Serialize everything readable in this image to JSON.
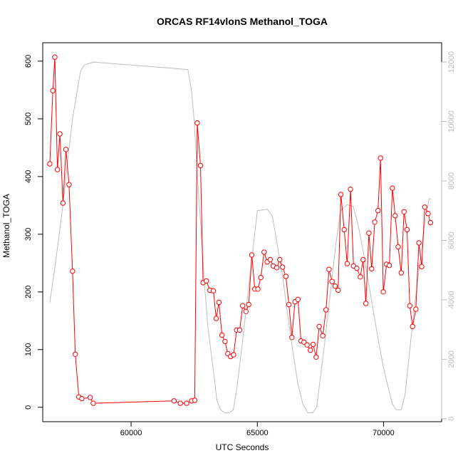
{
  "chart_data": {
    "type": "line",
    "title": "ORCAS RF14vlonS Methanol_TOGA",
    "xlabel": "UTC Seconds",
    "ylabel": "Methanol_TOGA",
    "xlim": [
      56500,
      72300
    ],
    "ylim": [
      -25,
      632
    ],
    "ylim_right": [
      -100,
      12650
    ],
    "x_ticks": [
      60000,
      65000,
      70000
    ],
    "y_ticks": [
      0,
      100,
      200,
      300,
      400,
      500,
      600
    ],
    "y_ticks_right": [
      0,
      2000,
      4000,
      6000,
      8000,
      10000,
      12000
    ],
    "grid": false,
    "colors": {
      "series_methanol": "#ff0000",
      "series_altitude": "#bebebe",
      "axis": "#000000"
    },
    "series": [
      {
        "axis": "left",
        "style": "line+points",
        "points": [
          [
            56780,
            422
          ],
          [
            56900,
            549
          ],
          [
            56980,
            607
          ],
          [
            57080,
            412
          ],
          [
            57180,
            474
          ],
          [
            57300,
            354
          ],
          [
            57420,
            447
          ],
          [
            57540,
            386
          ],
          [
            57680,
            236
          ],
          [
            57790,
            92
          ],
          [
            57930,
            18
          ],
          [
            58050,
            15
          ],
          [
            58380,
            17
          ],
          [
            58500,
            7
          ],
          [
            61700,
            11
          ],
          [
            61950,
            7
          ],
          [
            62200,
            7
          ],
          [
            62400,
            11
          ],
          [
            62520,
            12
          ],
          [
            62620,
            493
          ],
          [
            62750,
            419
          ],
          [
            62850,
            216
          ],
          [
            62980,
            219
          ],
          [
            63120,
            203
          ],
          [
            63260,
            202
          ],
          [
            63370,
            154
          ],
          [
            63480,
            182
          ],
          [
            63600,
            125
          ],
          [
            63720,
            114
          ],
          [
            63830,
            93
          ],
          [
            63940,
            88
          ],
          [
            64060,
            91
          ],
          [
            64180,
            134
          ],
          [
            64300,
            134
          ],
          [
            64420,
            176
          ],
          [
            64550,
            166
          ],
          [
            64660,
            178
          ],
          [
            64780,
            264
          ],
          [
            64900,
            205
          ],
          [
            65020,
            205
          ],
          [
            65140,
            225
          ],
          [
            65270,
            269
          ],
          [
            65390,
            252
          ],
          [
            65510,
            256
          ],
          [
            65630,
            245
          ],
          [
            65770,
            242
          ],
          [
            65890,
            256
          ],
          [
            66000,
            243
          ],
          [
            66130,
            227
          ],
          [
            66250,
            178
          ],
          [
            66370,
            121
          ],
          [
            66490,
            183
          ],
          [
            66610,
            187
          ],
          [
            66730,
            115
          ],
          [
            66850,
            113
          ],
          [
            66970,
            108
          ],
          [
            67100,
            99
          ],
          [
            67210,
            109
          ],
          [
            67330,
            87
          ],
          [
            67450,
            140
          ],
          [
            67590,
            124
          ],
          [
            67720,
            169
          ],
          [
            67840,
            239
          ],
          [
            67960,
            218
          ],
          [
            68080,
            210
          ],
          [
            68200,
            203
          ],
          [
            68310,
            369
          ],
          [
            68440,
            308
          ],
          [
            68560,
            249
          ],
          [
            68690,
            378
          ],
          [
            68810,
            245
          ],
          [
            68940,
            241
          ],
          [
            69080,
            226
          ],
          [
            69190,
            256
          ],
          [
            69300,
            180
          ],
          [
            69420,
            302
          ],
          [
            69530,
            240
          ],
          [
            69650,
            321
          ],
          [
            69780,
            341
          ],
          [
            69880,
            432
          ],
          [
            69990,
            200
          ],
          [
            70120,
            248
          ],
          [
            70230,
            246
          ],
          [
            70350,
            380
          ],
          [
            70460,
            332
          ],
          [
            70580,
            278
          ],
          [
            70700,
            233
          ],
          [
            70810,
            339
          ],
          [
            70930,
            308
          ],
          [
            71040,
            176
          ],
          [
            71150,
            140
          ],
          [
            71280,
            170
          ],
          [
            71400,
            285
          ],
          [
            71510,
            244
          ],
          [
            71630,
            347
          ],
          [
            71760,
            336
          ],
          [
            71860,
            320
          ]
        ]
      },
      {
        "axis": "right",
        "style": "line",
        "points": [
          [
            56780,
            3900
          ],
          [
            57000,
            5200
          ],
          [
            57300,
            7200
          ],
          [
            57500,
            8800
          ],
          [
            57700,
            10200
          ],
          [
            57900,
            11200
          ],
          [
            58000,
            11700
          ],
          [
            58150,
            11900
          ],
          [
            58500,
            12000
          ],
          [
            62250,
            11750
          ],
          [
            62400,
            11000
          ],
          [
            62500,
            10000
          ],
          [
            62600,
            8500
          ],
          [
            62750,
            6600
          ],
          [
            62900,
            4600
          ],
          [
            63050,
            3000
          ],
          [
            63250,
            1700
          ],
          [
            63400,
            600
          ],
          [
            63550,
            300
          ],
          [
            63700,
            200
          ],
          [
            63900,
            200
          ],
          [
            64050,
            300
          ],
          [
            64200,
            1100
          ],
          [
            64400,
            2500
          ],
          [
            64600,
            4000
          ],
          [
            64800,
            5500
          ],
          [
            65000,
            7000
          ],
          [
            65400,
            7050
          ],
          [
            65600,
            6800
          ],
          [
            65800,
            5800
          ],
          [
            66000,
            4800
          ],
          [
            66200,
            3500
          ],
          [
            66400,
            2300
          ],
          [
            66600,
            1200
          ],
          [
            66800,
            500
          ],
          [
            67000,
            200
          ],
          [
            67200,
            200
          ],
          [
            67350,
            400
          ],
          [
            67500,
            1400
          ],
          [
            67700,
            2800
          ],
          [
            67900,
            4300
          ],
          [
            68100,
            5800
          ],
          [
            68300,
            7000
          ],
          [
            68550,
            7200
          ],
          [
            68800,
            7150
          ],
          [
            69000,
            6500
          ],
          [
            69200,
            5600
          ],
          [
            69400,
            4600
          ],
          [
            69600,
            3600
          ],
          [
            69800,
            2600
          ],
          [
            70000,
            1700
          ],
          [
            70200,
            1000
          ],
          [
            70350,
            500
          ],
          [
            70500,
            300
          ],
          [
            70700,
            300
          ],
          [
            70850,
            800
          ],
          [
            71000,
            2000
          ],
          [
            71200,
            3600
          ],
          [
            71400,
            5000
          ],
          [
            71600,
            6400
          ],
          [
            71800,
            7400
          ],
          [
            71900,
            7400
          ]
        ]
      }
    ]
  }
}
